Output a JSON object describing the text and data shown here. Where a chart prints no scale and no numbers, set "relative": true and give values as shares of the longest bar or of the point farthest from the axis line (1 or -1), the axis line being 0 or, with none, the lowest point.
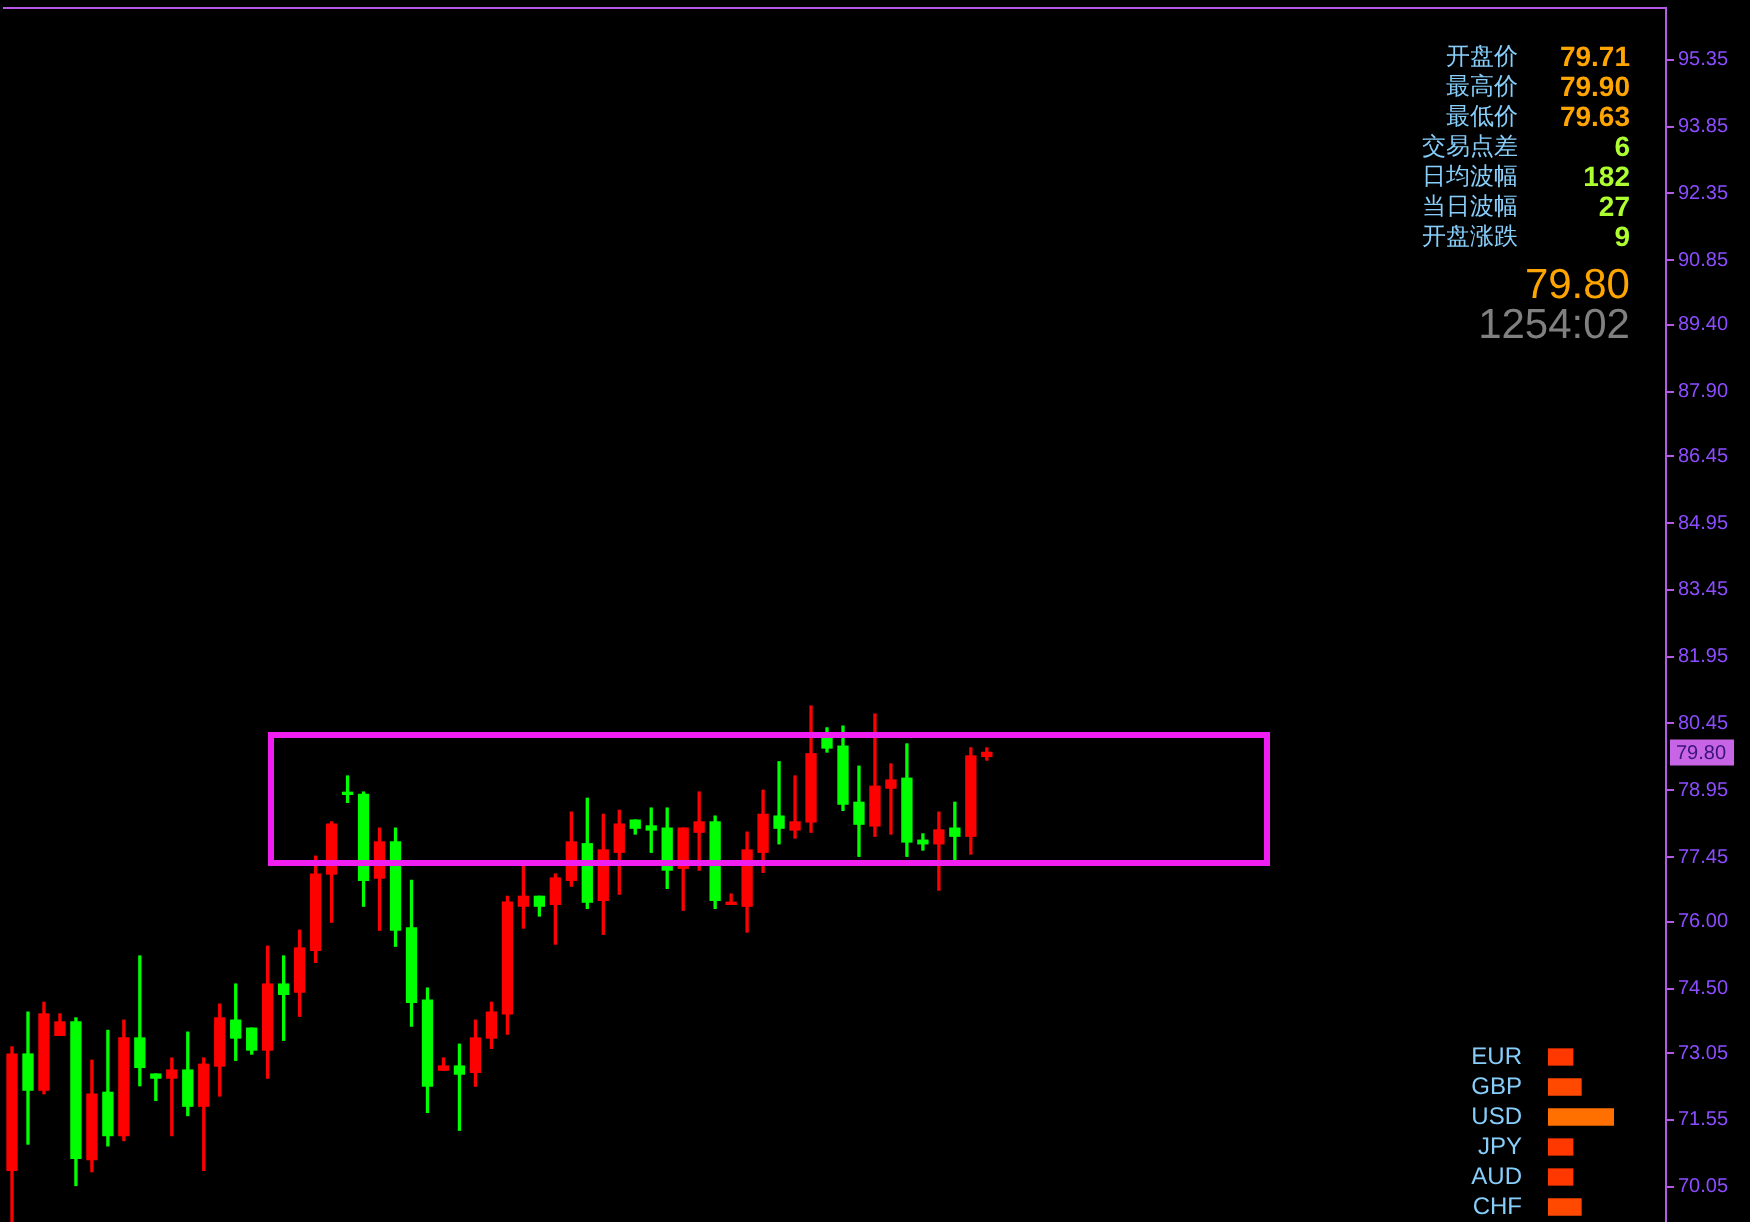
{
  "chart_data": [
    {
      "type": "candlestick",
      "categories": [
        null,
        null,
        null,
        null,
        null,
        null,
        null,
        null,
        null,
        null,
        null,
        null,
        null,
        null,
        null,
        null,
        null,
        null,
        null,
        null,
        null,
        null,
        null,
        null,
        null,
        null,
        null,
        null,
        null,
        null,
        null,
        null,
        null,
        null,
        null,
        null,
        null,
        null,
        null,
        null,
        null,
        null,
        null,
        null,
        null,
        null,
        null,
        null,
        null,
        null,
        null,
        null,
        null,
        null,
        null,
        null,
        null,
        null,
        null,
        null,
        null,
        null,
        null,
        null,
        null,
        null,
        null,
        null,
        null,
        null,
        null,
        null,
        null,
        null,
        null,
        null,
        null,
        null,
        null,
        null,
        null,
        null,
        null,
        null,
        null,
        null,
        null,
        null,
        null,
        null,
        null,
        null,
        null,
        null,
        null,
        null,
        null,
        null,
        null,
        null,
        null,
        null,
        null,
        null
      ],
      "ohlc": [
        [
          70.42,
          73.19,
          69.26,
          73.03
        ],
        [
          73.03,
          73.97,
          71.01,
          72.22
        ],
        [
          72.22,
          74.19,
          72.14,
          73.93
        ],
        [
          73.45,
          73.93,
          73.45,
          73.75
        ],
        [
          73.75,
          73.84,
          70.08,
          70.69
        ],
        [
          70.66,
          72.89,
          70.39,
          72.13
        ],
        [
          72.17,
          73.56,
          70.97,
          71.2
        ],
        [
          71.2,
          73.79,
          71.09,
          73.39
        ],
        [
          73.39,
          75.23,
          72.32,
          72.73
        ],
        [
          72.58,
          72.58,
          71.99,
          72.49
        ],
        [
          72.49,
          72.94,
          71.2,
          72.67
        ],
        [
          72.67,
          73.52,
          71.65,
          71.86
        ],
        [
          71.86,
          72.94,
          70.42,
          72.8
        ],
        [
          72.76,
          74.15,
          72.09,
          73.84
        ],
        [
          73.79,
          74.6,
          72.89,
          73.39
        ],
        [
          73.61,
          73.61,
          73.03,
          73.12
        ],
        [
          73.12,
          75.45,
          72.49,
          74.6
        ],
        [
          74.6,
          75.23,
          73.34,
          74.37
        ],
        [
          74.42,
          75.81,
          73.88,
          75.41
        ],
        [
          75.36,
          77.47,
          75.09,
          77.07
        ],
        [
          77.07,
          78.24,
          75.99,
          78.19
        ],
        [
          78.86,
          79.27,
          78.68,
          78.86
        ],
        [
          78.86,
          78.91,
          76.35,
          76.93
        ],
        [
          76.98,
          78.1,
          75.81,
          77.79
        ],
        [
          77.79,
          78.1,
          75.45,
          75.81
        ],
        [
          75.86,
          76.93,
          73.66,
          74.19
        ],
        [
          74.24,
          74.51,
          71.72,
          72.31
        ],
        [
          72.67,
          72.94,
          72.67,
          72.76
        ],
        [
          72.76,
          73.25,
          71.32,
          72.58
        ],
        [
          72.62,
          73.79,
          72.31,
          73.39
        ],
        [
          73.39,
          74.19,
          73.16,
          73.97
        ],
        [
          73.93,
          76.57,
          73.48,
          76.44
        ],
        [
          76.35,
          77.25,
          75.86,
          76.57
        ],
        [
          76.57,
          76.57,
          76.13,
          76.35
        ],
        [
          76.39,
          77.07,
          75.5,
          76.98
        ],
        [
          76.93,
          78.46,
          76.8,
          77.79
        ],
        [
          77.75,
          78.77,
          76.3,
          76.44
        ],
        [
          76.48,
          78.41,
          75.72,
          77.61
        ],
        [
          77.56,
          78.5,
          76.62,
          78.19
        ],
        [
          78.28,
          78.28,
          77.97,
          78.1
        ],
        [
          78.15,
          78.55,
          77.56,
          78.06
        ],
        [
          78.1,
          78.55,
          76.75,
          77.16
        ],
        [
          77.2,
          78.1,
          76.26,
          78.1
        ],
        [
          78.01,
          78.91,
          77.16,
          78.24
        ],
        [
          78.24,
          78.37,
          76.3,
          76.48
        ],
        [
          76.39,
          76.62,
          76.39,
          76.39
        ],
        [
          76.35,
          78.01,
          75.77,
          77.61
        ],
        [
          77.56,
          78.95,
          77.11,
          78.41
        ],
        [
          78.37,
          79.59,
          77.75,
          78.1
        ],
        [
          78.06,
          79.27,
          77.88,
          78.24
        ],
        [
          78.24,
          80.84,
          78.01,
          79.77
        ],
        [
          80.12,
          80.35,
          79.81,
          79.9
        ],
        [
          79.94,
          80.39,
          78.5,
          78.64
        ],
        [
          78.68,
          79.49,
          77.47,
          78.19
        ],
        [
          78.15,
          80.66,
          77.92,
          79.04
        ],
        [
          79.0,
          79.54,
          77.97,
          79.18
        ],
        [
          79.22,
          79.99,
          77.47,
          77.79
        ],
        [
          77.83,
          77.97,
          77.61,
          77.75
        ],
        [
          77.75,
          78.46,
          76.71,
          78.06
        ],
        [
          78.1,
          78.68,
          77.38,
          77.92
        ],
        [
          77.92,
          79.9,
          77.52,
          79.72
        ],
        [
          79.71,
          79.9,
          79.63,
          79.8
        ],
        null,
        null,
        null,
        null,
        null,
        null,
        null,
        null,
        null,
        null,
        null,
        null,
        null,
        null,
        null,
        null,
        null,
        null,
        null,
        null,
        null,
        null,
        null,
        null,
        null,
        null,
        null,
        null,
        null,
        null,
        null,
        null,
        null,
        null,
        null,
        null,
        null,
        null,
        null,
        null,
        null,
        null
      ],
      "colors": [
        "#ff0000",
        "#00ff00",
        "#ff0000",
        "#ff0000",
        "#00ff00",
        "#ff0000",
        "#00ff00",
        "#ff0000",
        "#00ff00",
        "#00ff00",
        "#ff0000",
        "#00ff00",
        "#ff0000",
        "#ff0000",
        "#00ff00",
        "#00ff00",
        "#ff0000",
        "#00ff00",
        "#ff0000",
        "#ff0000",
        "#ff0000",
        "#00ff00",
        "#00ff00",
        "#ff0000",
        "#00ff00",
        "#00ff00",
        "#00ff00",
        "#ff0000",
        "#00ff00",
        "#ff0000",
        "#ff0000",
        "#ff0000",
        "#ff0000",
        "#00ff00",
        "#ff0000",
        "#ff0000",
        "#00ff00",
        "#ff0000",
        "#ff0000",
        "#00ff00",
        "#00ff00",
        "#00ff00",
        "#ff0000",
        "#ff0000",
        "#00ff00",
        "#ff0000",
        "#ff0000",
        "#ff0000",
        "#00ff00",
        "#ff0000",
        "#ff0000",
        "#00ff00",
        "#00ff00",
        "#00ff00",
        "#ff0000",
        "#ff0000",
        "#00ff00",
        "#00ff00",
        "#ff0000",
        "#00ff00",
        "#ff0000",
        "#ff0000",
        null,
        null,
        null,
        null,
        null,
        null,
        null,
        null,
        null,
        null,
        null,
        null,
        null,
        null,
        null,
        null,
        null,
        null,
        null,
        null,
        null,
        null,
        null,
        null,
        null,
        null,
        null,
        null,
        null,
        null,
        null,
        null,
        null,
        null,
        null,
        null,
        null,
        null,
        null,
        null,
        null,
        null
      ],
      "ylim": [
        69.26,
        96.51
      ],
      "yticks": [
        95.35,
        93.85,
        92.35,
        90.85,
        {
          "value": 89.4,
          "label": "89.40"
        },
        {
          "value": 87.9,
          "label": "87.90"
        },
        86.45,
        84.95,
        83.45,
        81.95,
        80.45,
        78.95,
        77.45,
        {
          "value": 76,
          "label": "76.00"
        },
        {
          "value": 74.5,
          "label": "74.50"
        },
        73.05,
        71.55,
        70.05
      ],
      "annotations": [
        "开盘价",
        "79.71",
        "最高价",
        "79.90",
        "最低价",
        "79.63",
        "交易点差",
        "6",
        "日均波幅",
        "182",
        "当日波幅",
        "27",
        "开盘涨跌",
        "9",
        "79.80",
        "1254:02",
        {
          "text": "79.80",
          "y": 79.8
        }
      ]
    },
    {
      "type": "bar",
      "orientation": "horizontal",
      "relative": true,
      "categories": [
        "EUR",
        "GBP",
        "USD",
        "JPY",
        "AUD",
        "CHF"
      ],
      "values": [
        0.375,
        0.5,
        1,
        0.375,
        0.375,
        0.5
      ],
      "colors": [
        "#ff3800",
        "#ff4800",
        "#ff7000",
        "#ff3800",
        "#ff3800",
        "#ff4800"
      ]
    }
  ]
}
